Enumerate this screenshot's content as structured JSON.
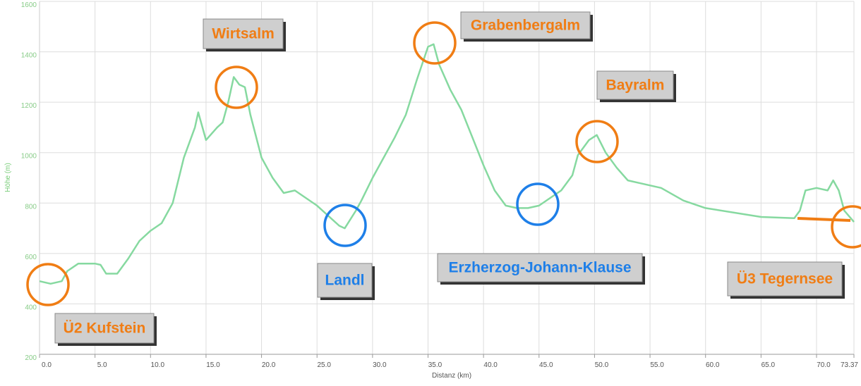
{
  "chart_data": {
    "type": "line",
    "xlabel": "Distanz (km)",
    "ylabel": "Höhe (m)",
    "x": [
      0,
      1,
      2,
      2.5,
      3.5,
      5,
      5.5,
      6,
      7,
      8,
      9,
      10,
      11,
      12,
      13,
      14,
      14.3,
      15,
      16,
      16.5,
      17,
      17.5,
      18,
      18.5,
      19,
      20,
      21,
      22,
      23,
      24,
      25,
      26,
      27,
      27.5,
      28.5,
      29,
      30,
      31,
      32,
      33,
      34,
      35,
      35.5,
      36,
      37,
      38,
      39,
      40,
      41,
      42,
      43,
      44,
      45,
      46,
      47,
      48,
      48.5,
      49.5,
      50.2,
      51,
      52,
      53,
      54,
      56,
      58,
      60,
      65,
      68,
      68.5,
      69,
      70,
      71,
      71.5,
      72,
      72.5,
      73.37
    ],
    "series": [
      {
        "color": "#86d9a0",
        "values": [
          490,
          480,
          490,
          530,
          560,
          560,
          555,
          520,
          520,
          580,
          650,
          690,
          720,
          800,
          980,
          1100,
          1160,
          1050,
          1100,
          1120,
          1200,
          1300,
          1270,
          1260,
          1150,
          980,
          900,
          840,
          850,
          820,
          790,
          750,
          710,
          700,
          770,
          810,
          900,
          980,
          1060,
          1150,
          1290,
          1420,
          1430,
          1350,
          1250,
          1170,
          1060,
          950,
          850,
          790,
          780,
          780,
          790,
          820,
          850,
          910,
          990,
          1050,
          1070,
          1000,
          940,
          890,
          880,
          860,
          810,
          780,
          745,
          740,
          770,
          850,
          860,
          850,
          890,
          850,
          770,
          725
        ]
      }
    ],
    "xlim": [
      0,
      73.37
    ],
    "xticks": [
      {
        "value": 0,
        "label": "0.0"
      },
      {
        "value": 5,
        "label": "5.0"
      },
      {
        "value": 10,
        "label": "10.0"
      },
      {
        "value": 15,
        "label": "15.0"
      },
      {
        "value": 20,
        "label": "20.0"
      },
      {
        "value": 25,
        "label": "25.0"
      },
      {
        "value": 30,
        "label": "30.0"
      },
      {
        "value": 35,
        "label": "35.0"
      },
      {
        "value": 40,
        "label": "40.0"
      },
      {
        "value": 45,
        "label": "45.0"
      },
      {
        "value": 50,
        "label": "50.0"
      },
      {
        "value": 55,
        "label": "55.0"
      },
      {
        "value": 60,
        "label": "60.0"
      },
      {
        "value": 65,
        "label": "65.0"
      },
      {
        "value": 70,
        "label": "70.0"
      },
      73.37
    ],
    "ylim": [
      200,
      1600
    ],
    "yticks": [
      200,
      400,
      600,
      800,
      1000,
      1200,
      1400,
      1600
    ],
    "grid": true,
    "annotations": [
      {
        "text": "Wirtsalm",
        "color": "#f07d14"
      },
      {
        "text": "Grabenbergalm",
        "color": "#f07d14"
      },
      {
        "text": "Bayralm",
        "color": "#f07d14"
      },
      {
        "text": "Landl",
        "color": "#1e7fe8"
      },
      {
        "text": "Erzherzog-Johann-Klause",
        "color": "#1e7fe8"
      },
      {
        "text": "Ü3 Tegernsee",
        "color": "#f07d14"
      },
      {
        "text": "Ü2 Kufstein",
        "color": "#f07d14"
      }
    ]
  }
}
